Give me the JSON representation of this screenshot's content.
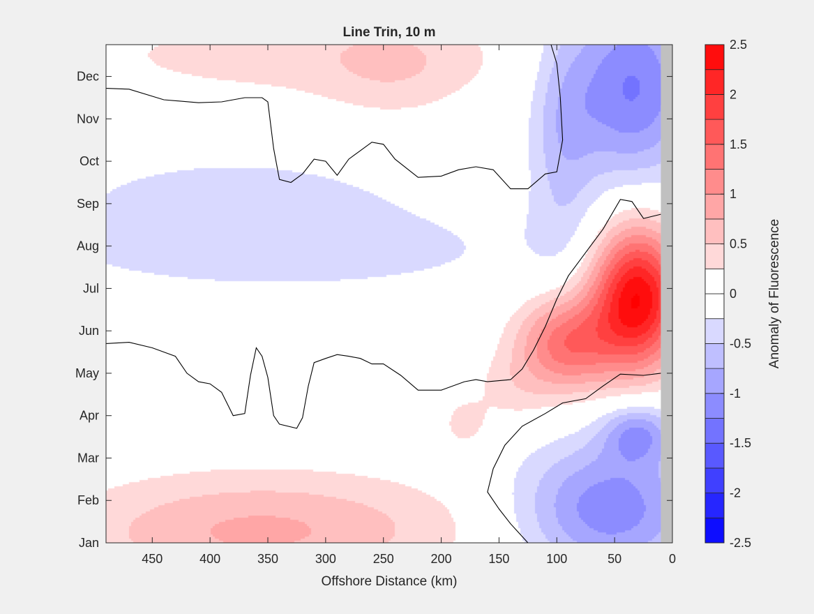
{
  "chart_data": {
    "type": "heatmap",
    "title": "Line Trin, 10 m",
    "xlabel": "Offshore Distance (km)",
    "ylabel": "",
    "colorbar_label": "Anomaly of Fluorescence",
    "xlim": [
      490,
      0
    ],
    "x_reversed": true,
    "x_ticks": [
      450,
      400,
      350,
      300,
      250,
      200,
      150,
      100,
      50,
      0
    ],
    "ylim": [
      1,
      12.75
    ],
    "y_ticks": [
      {
        "value": 1,
        "label": "Jan"
      },
      {
        "value": 2,
        "label": "Feb"
      },
      {
        "value": 3,
        "label": "Mar"
      },
      {
        "value": 4,
        "label": "Apr"
      },
      {
        "value": 5,
        "label": "May"
      },
      {
        "value": 6,
        "label": "Jun"
      },
      {
        "value": 7,
        "label": "Jul"
      },
      {
        "value": 8,
        "label": "Aug"
      },
      {
        "value": 9,
        "label": "Sep"
      },
      {
        "value": 10,
        "label": "Oct"
      },
      {
        "value": 11,
        "label": "Nov"
      },
      {
        "value": 12,
        "label": "Dec"
      }
    ],
    "clim": [
      -2.5,
      2.5
    ],
    "color_levels": [
      -2.5,
      -2.25,
      -2,
      -1.75,
      -1.5,
      -1.25,
      -1,
      -0.75,
      -0.5,
      -0.25,
      0,
      0.25,
      0.5,
      0.75,
      1,
      1.25,
      1.5,
      1.75,
      2,
      2.25,
      2.5
    ],
    "colorbar_ticks": [
      {
        "value": 2.5,
        "label": "2.5"
      },
      {
        "value": 2,
        "label": "2"
      },
      {
        "value": 1.5,
        "label": "1.5"
      },
      {
        "value": 1,
        "label": "1"
      },
      {
        "value": 0.5,
        "label": "0.5"
      },
      {
        "value": 0,
        "label": "0"
      },
      {
        "value": -0.5,
        "label": "-0.5"
      },
      {
        "value": -1,
        "label": "-1"
      },
      {
        "value": -1.5,
        "label": "-1.5"
      },
      {
        "value": -2,
        "label": "-2"
      },
      {
        "value": -2.5,
        "label": "-2.5"
      }
    ],
    "no_data_x_range": [
      10,
      0
    ],
    "colors": {
      "negative_max": "#0000ff",
      "neutral": "#ffffff",
      "positive_max": "#ff0000",
      "no_data": "#c0c0c0",
      "contour": "#000000",
      "figure_bg": "#f0f0f0"
    },
    "anomaly_features": [
      {
        "name": "summer-bloom-nearshore",
        "x_center": 30,
        "month_center": 6.8,
        "x_halfwidth": 28,
        "month_halfwidth": 1.2,
        "peak": 2.5
      },
      {
        "name": "late-spring-bloom",
        "x_center": 92,
        "month_center": 5.7,
        "x_halfwidth": 30,
        "month_halfwidth": 0.8,
        "peak": 1.4
      },
      {
        "name": "spring-bloom-tail",
        "x_center": 140,
        "month_center": 4.6,
        "x_halfwidth": 25,
        "month_halfwidth": 0.6,
        "peak": 0.3
      },
      {
        "name": "winter-low-nearshore",
        "x_center": 55,
        "month_center": 1.8,
        "x_halfwidth": 55,
        "month_halfwidth": 1.1,
        "peak": -1.2
      },
      {
        "name": "spring-low-nearshore",
        "x_center": 30,
        "month_center": 3.6,
        "x_halfwidth": 22,
        "month_halfwidth": 0.5,
        "peak": -0.9
      },
      {
        "name": "autumn-low-nearshore",
        "x_center": 35,
        "month_center": 11.8,
        "x_halfwidth": 40,
        "month_halfwidth": 1.6,
        "peak": -1.3
      },
      {
        "name": "autumn-low-coastal",
        "x_center": 95,
        "month_center": 10.5,
        "x_halfwidth": 20,
        "month_halfwidth": 2.0,
        "peak": -0.5
      },
      {
        "name": "summer-low-offshore",
        "x_center": 340,
        "month_center": 7.9,
        "x_halfwidth": 190,
        "month_halfwidth": 0.9,
        "peak": -0.35
      },
      {
        "name": "autumn-low-offshore",
        "x_center": 380,
        "month_center": 9.3,
        "x_halfwidth": 100,
        "month_halfwidth": 0.7,
        "peak": -0.3
      },
      {
        "name": "winter-high-offshore",
        "x_center": 380,
        "month_center": 1.2,
        "x_halfwidth": 110,
        "month_halfwidth": 1.0,
        "peak": 0.55
      },
      {
        "name": "winter-high-mid",
        "x_center": 300,
        "month_center": 1.4,
        "x_halfwidth": 120,
        "month_halfwidth": 0.9,
        "peak": 0.3
      },
      {
        "name": "december-high-offshore",
        "x_center": 330,
        "month_center": 12.5,
        "x_halfwidth": 150,
        "month_halfwidth": 0.8,
        "peak": 0.35
      },
      {
        "name": "december-high-mid",
        "x_center": 240,
        "month_center": 12.2,
        "x_halfwidth": 45,
        "month_halfwidth": 0.9,
        "peak": 0.3
      },
      {
        "name": "april-high-patch",
        "x_center": 180,
        "month_center": 3.8,
        "x_halfwidth": 14,
        "month_halfwidth": 0.4,
        "peak": 0.35
      }
    ],
    "zero_contours": [
      {
        "name": "contour-upper",
        "points": [
          [
            490,
            11.72
          ],
          [
            470,
            11.7
          ],
          [
            440,
            11.45
          ],
          [
            410,
            11.38
          ],
          [
            390,
            11.4
          ],
          [
            370,
            11.5
          ],
          [
            355,
            11.5
          ],
          [
            350,
            11.4
          ],
          [
            345,
            10.3
          ],
          [
            340,
            9.57
          ],
          [
            330,
            9.5
          ],
          [
            320,
            9.7
          ],
          [
            310,
            10.05
          ],
          [
            300,
            10.0
          ],
          [
            290,
            9.67
          ],
          [
            280,
            10.05
          ],
          [
            270,
            10.25
          ],
          [
            260,
            10.45
          ],
          [
            250,
            10.4
          ],
          [
            240,
            10.05
          ],
          [
            220,
            9.62
          ],
          [
            200,
            9.65
          ],
          [
            185,
            9.8
          ],
          [
            170,
            9.87
          ],
          [
            155,
            9.8
          ],
          [
            140,
            9.35
          ],
          [
            125,
            9.35
          ],
          [
            110,
            9.7
          ],
          [
            100,
            9.75
          ],
          [
            95,
            10.5
          ],
          [
            97,
            11.5
          ],
          [
            100,
            12.3
          ],
          [
            105,
            12.75
          ]
        ]
      },
      {
        "name": "contour-middle",
        "points": [
          [
            490,
            5.7
          ],
          [
            470,
            5.73
          ],
          [
            450,
            5.6
          ],
          [
            430,
            5.4
          ],
          [
            420,
            5.0
          ],
          [
            410,
            4.8
          ],
          [
            400,
            4.75
          ],
          [
            390,
            4.55
          ],
          [
            380,
            4.0
          ],
          [
            370,
            4.05
          ],
          [
            365,
            4.95
          ],
          [
            360,
            5.6
          ],
          [
            355,
            5.4
          ],
          [
            350,
            4.9
          ],
          [
            345,
            4.0
          ],
          [
            340,
            3.8
          ],
          [
            325,
            3.7
          ],
          [
            320,
            3.95
          ],
          [
            315,
            4.7
          ],
          [
            310,
            5.25
          ],
          [
            300,
            5.35
          ],
          [
            290,
            5.44
          ],
          [
            280,
            5.4
          ],
          [
            270,
            5.35
          ],
          [
            260,
            5.22
          ],
          [
            250,
            5.22
          ],
          [
            235,
            4.95
          ],
          [
            220,
            4.6
          ],
          [
            200,
            4.6
          ],
          [
            180,
            4.8
          ],
          [
            170,
            4.85
          ],
          [
            160,
            4.8
          ],
          [
            140,
            4.85
          ],
          [
            130,
            5.1
          ],
          [
            120,
            5.55
          ],
          [
            110,
            6.1
          ],
          [
            100,
            6.75
          ],
          [
            90,
            7.3
          ],
          [
            75,
            7.85
          ],
          [
            60,
            8.4
          ],
          [
            45,
            9.1
          ],
          [
            35,
            9.05
          ],
          [
            25,
            8.65
          ],
          [
            10,
            8.75
          ]
        ]
      },
      {
        "name": "contour-lower",
        "points": [
          [
            10,
            5.0
          ],
          [
            25,
            4.95
          ],
          [
            45,
            4.98
          ],
          [
            60,
            4.7
          ],
          [
            75,
            4.4
          ],
          [
            95,
            4.3
          ],
          [
            110,
            4.05
          ],
          [
            130,
            3.75
          ],
          [
            145,
            3.3
          ],
          [
            155,
            2.75
          ],
          [
            160,
            2.2
          ],
          [
            150,
            1.8
          ],
          [
            140,
            1.45
          ],
          [
            130,
            1.15
          ],
          [
            125,
            1.0
          ]
        ]
      }
    ]
  }
}
